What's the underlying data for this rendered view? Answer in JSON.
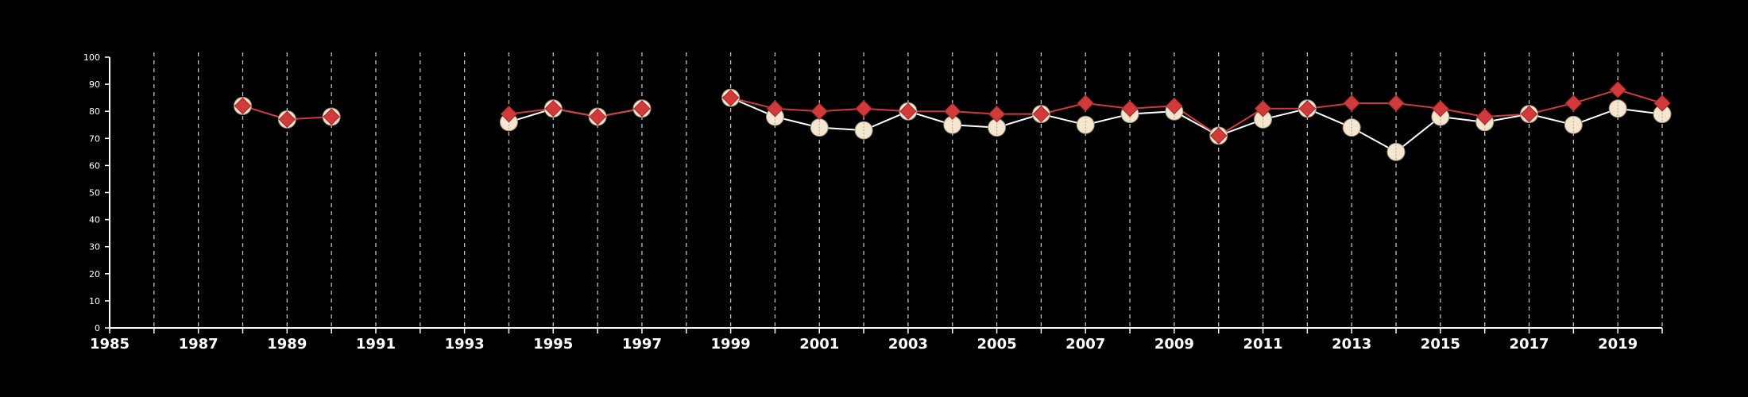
{
  "chart_data": {
    "type": "line",
    "x_ticks": [
      "1985",
      "1987",
      "1989",
      "1991",
      "1993",
      "1995",
      "1997",
      "1999",
      "2001",
      "2003",
      "2005",
      "2007",
      "2009",
      "2011",
      "2013",
      "2015",
      "2017",
      "2019"
    ],
    "y_ticks": [
      "0",
      "10",
      "20",
      "30",
      "40",
      "50",
      "60",
      "70",
      "80",
      "90",
      "100"
    ],
    "xlim": [
      1985,
      2020
    ],
    "ylim": [
      0,
      100
    ],
    "grid": "vertical-dashed",
    "legend": "none",
    "series": [
      {
        "marker": "circle",
        "color": "#f5e6d0",
        "line_color": "#ffffff",
        "points": [
          [
            1994,
            76
          ],
          [
            1995,
            81
          ],
          [
            1996,
            78
          ],
          [
            1997,
            81
          ],
          [
            1999,
            85
          ],
          [
            2000,
            78
          ],
          [
            2001,
            74
          ],
          [
            2002,
            73
          ],
          [
            2003,
            80
          ],
          [
            2004,
            75
          ],
          [
            2005,
            74
          ],
          [
            2006,
            79
          ],
          [
            2007,
            75
          ],
          [
            2008,
            79
          ],
          [
            2009,
            80
          ],
          [
            2010,
            71
          ],
          [
            2011,
            77
          ],
          [
            2012,
            81
          ],
          [
            2013,
            74
          ],
          [
            2014,
            65
          ],
          [
            2015,
            78
          ],
          [
            2016,
            76
          ],
          [
            2017,
            79
          ],
          [
            2018,
            75
          ],
          [
            2019,
            81
          ],
          [
            2020,
            79
          ]
        ],
        "segments": [
          [
            1994,
            1997
          ],
          [
            1999,
            2020
          ]
        ]
      },
      {
        "marker": "diamond",
        "color": "#d03a3a",
        "line_color": "#d03a3a",
        "points": [
          [
            1988,
            82
          ],
          [
            1989,
            77
          ],
          [
            1990,
            78
          ],
          [
            1994,
            79
          ],
          [
            1995,
            81
          ],
          [
            1996,
            78
          ],
          [
            1997,
            81
          ],
          [
            1999,
            85
          ],
          [
            2000,
            81
          ],
          [
            2001,
            80
          ],
          [
            2002,
            81
          ],
          [
            2003,
            80
          ],
          [
            2004,
            80
          ],
          [
            2005,
            79
          ],
          [
            2006,
            79
          ],
          [
            2007,
            83
          ],
          [
            2008,
            81
          ],
          [
            2009,
            82
          ],
          [
            2010,
            71
          ],
          [
            2011,
            81
          ],
          [
            2012,
            81
          ],
          [
            2013,
            83
          ],
          [
            2014,
            83
          ],
          [
            2015,
            81
          ],
          [
            2016,
            78
          ],
          [
            2017,
            79
          ],
          [
            2018,
            83
          ],
          [
            2019,
            88
          ],
          [
            2020,
            83
          ]
        ],
        "segments": [
          [
            1988,
            1990
          ],
          [
            1994,
            1997
          ],
          [
            1999,
            2020
          ]
        ]
      }
    ],
    "extra_markers": [
      {
        "series": "circle",
        "points": [
          [
            1988,
            82
          ],
          [
            1989,
            77
          ],
          [
            1990,
            78
          ]
        ]
      }
    ]
  }
}
